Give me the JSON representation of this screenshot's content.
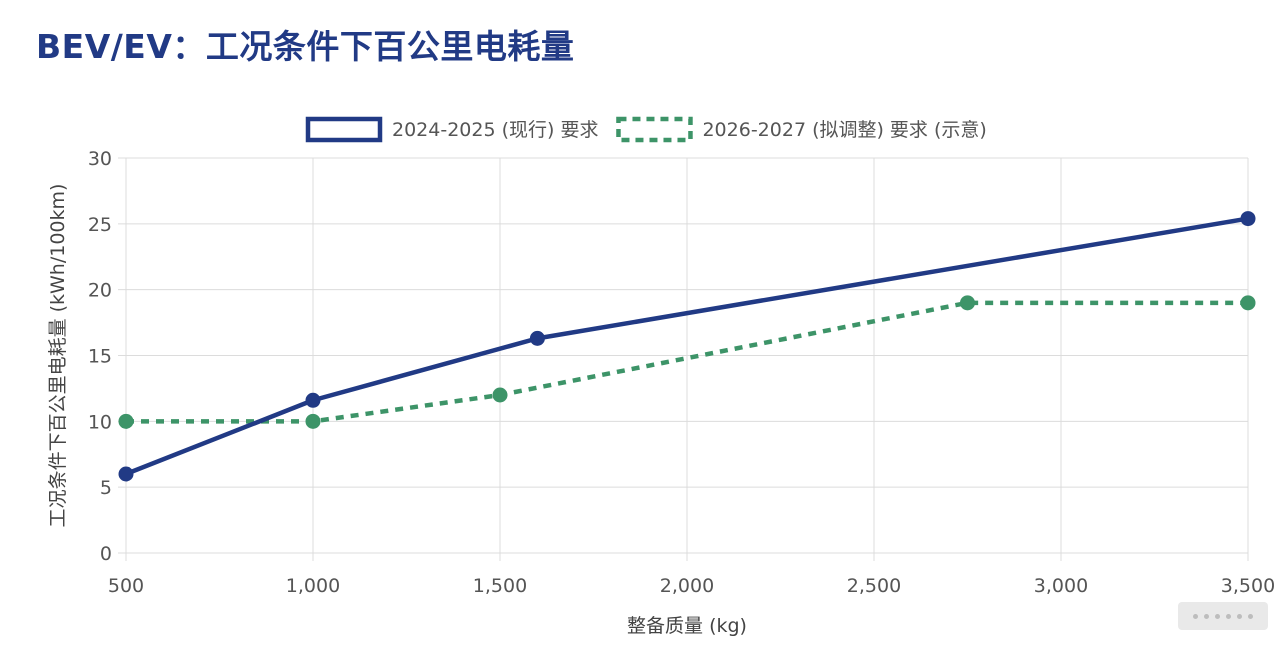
{
  "page": {
    "title": "BEV/EV：工况条件下百公里电耗量"
  },
  "chart_data": {
    "type": "line",
    "title": "BEV/EV：工况条件下百公里电耗量",
    "xlabel": "整备质量 (kg)",
    "ylabel": "工况条件下百公里电耗量 (kWh/100km)",
    "xlim": [
      500,
      3500
    ],
    "ylim": [
      0,
      30
    ],
    "x_ticks": [
      500,
      1000,
      1500,
      2000,
      2500,
      3000,
      3500
    ],
    "x_tick_labels": [
      "500",
      "1,000",
      "1,500",
      "2,000",
      "2,500",
      "3,000",
      "3,500"
    ],
    "y_ticks": [
      0,
      5,
      10,
      15,
      20,
      25,
      30
    ],
    "y_tick_labels": [
      "0",
      "5",
      "10",
      "15",
      "20",
      "25",
      "30"
    ],
    "grid": true,
    "legend_position": "top-center",
    "series": [
      {
        "name": "2024-2025 (现行) 要求",
        "color": "#213a85",
        "style": "solid",
        "points": [
          [
            500,
            6.0
          ],
          [
            1000,
            11.6
          ],
          [
            1600,
            16.3
          ],
          [
            3500,
            25.4
          ]
        ]
      },
      {
        "name": "2026-2027 (拟调整) 要求 (示意)",
        "color": "#3d9468",
        "style": "dashed",
        "points": [
          [
            500,
            10.0
          ],
          [
            1000,
            10.0
          ],
          [
            1500,
            12.0
          ],
          [
            2750,
            19.0
          ],
          [
            3500,
            19.0
          ]
        ]
      }
    ]
  },
  "watermark": {
    "icon": "ellipsis-icon"
  }
}
